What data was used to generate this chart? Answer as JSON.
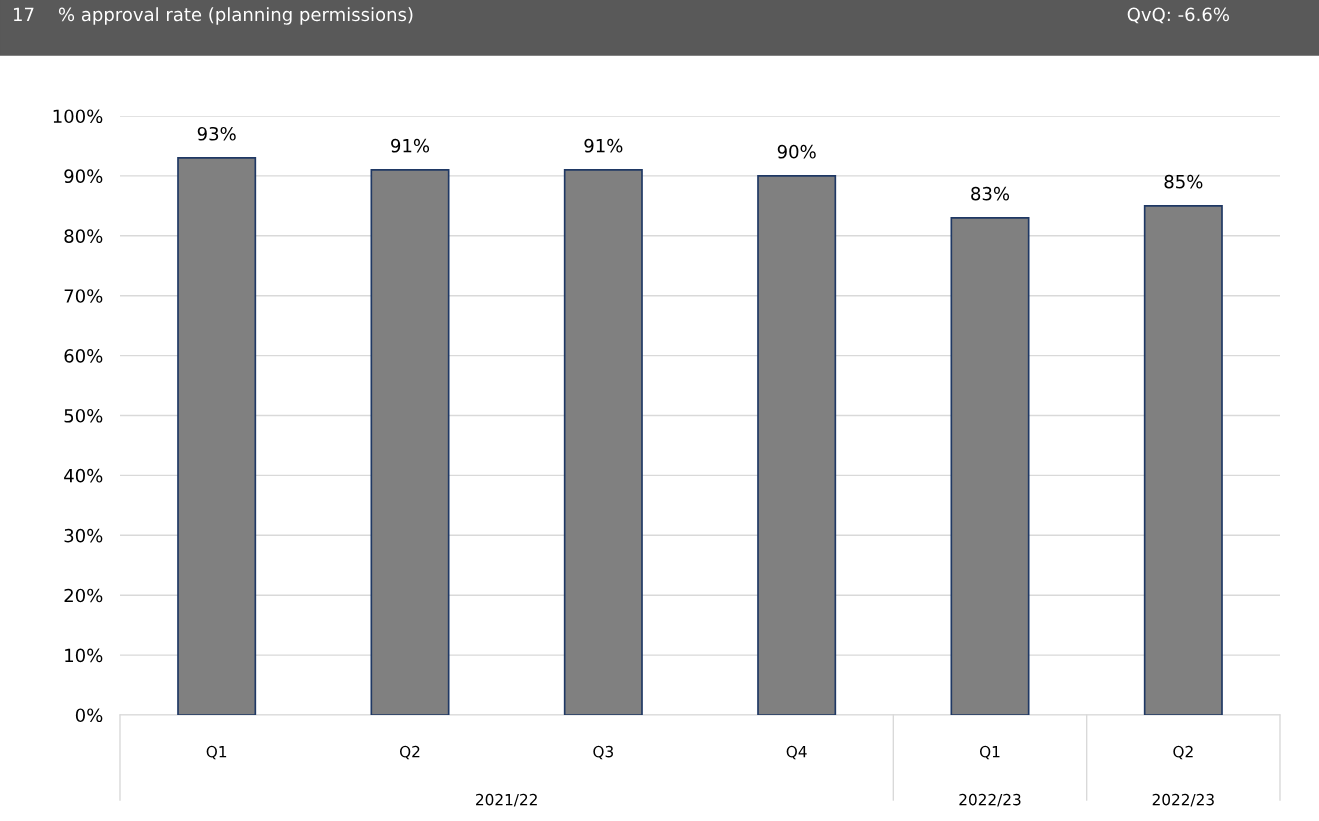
{
  "chart_data": {
    "type": "bar",
    "title": "17    % approval rate (planning permissions)",
    "subtitle": "QvQ: -6.6%",
    "categories": [
      "Q1",
      "Q2",
      "Q3",
      "Q4",
      "Q1",
      "Q2"
    ],
    "values": [
      93,
      91,
      91,
      90,
      83,
      85
    ],
    "value_labels": [
      "93%",
      "91%",
      "91%",
      "90%",
      "83%",
      "85%"
    ],
    "color": "#808080",
    "ylim": [
      0,
      100
    ],
    "yticks": [
      {
        "value": 0,
        "label": "0%"
      },
      {
        "value": 10,
        "label": "10%"
      },
      {
        "value": 20,
        "label": "20%"
      },
      {
        "value": 30,
        "label": "30%"
      },
      {
        "value": 40,
        "label": "40%"
      },
      {
        "value": 50,
        "label": "50%"
      },
      {
        "value": 60,
        "label": "60%"
      },
      {
        "value": 70,
        "label": "70%"
      },
      {
        "value": 80,
        "label": "80%"
      },
      {
        "value": 90,
        "label": "90%"
      },
      {
        "value": 100,
        "label": "100%"
      }
    ],
    "grid": "y",
    "annotations": [
      "2021/22",
      "2022/23",
      "2022/23"
    ]
  }
}
